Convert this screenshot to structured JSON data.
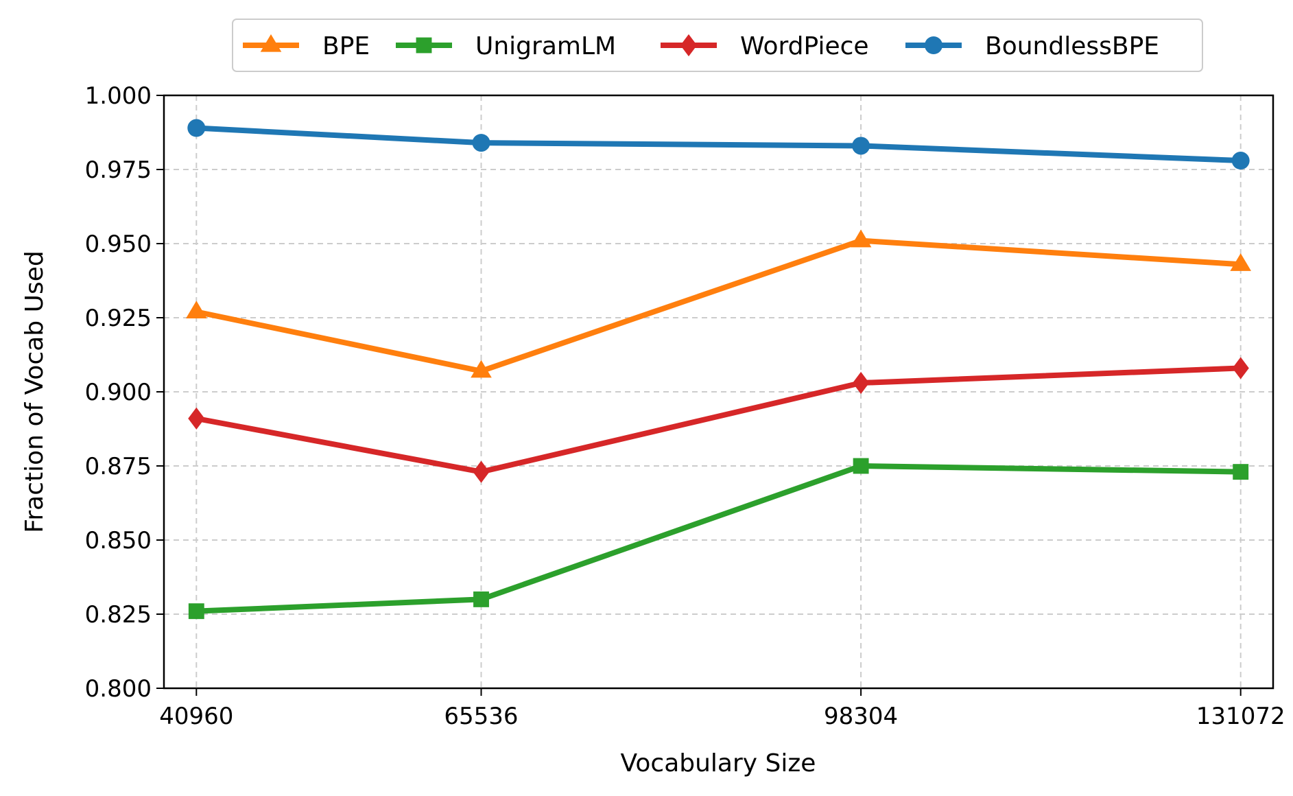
{
  "chart_data": {
    "type": "line",
    "title": "",
    "xlabel": "Vocabulary Size",
    "ylabel": "Fraction of Vocab Used",
    "x": [
      40960,
      65536,
      98304,
      131072
    ],
    "x_tick_labels": [
      "40960",
      "65536",
      "98304",
      "131072"
    ],
    "ylim": [
      0.8,
      1.0
    ],
    "y_ticks": [
      0.8,
      0.825,
      0.85,
      0.875,
      0.9,
      0.925,
      0.95,
      0.975,
      1.0
    ],
    "y_tick_labels": [
      "0.800",
      "0.825",
      "0.850",
      "0.875",
      "0.900",
      "0.925",
      "0.950",
      "0.975",
      "1.000"
    ],
    "grid": true,
    "legend_position": "top-center",
    "series": [
      {
        "name": "BPE",
        "color": "#ff7f0e",
        "marker": "triangle",
        "values": [
          0.927,
          0.907,
          0.951,
          0.943
        ]
      },
      {
        "name": "UnigramLM",
        "color": "#2ca02c",
        "marker": "square",
        "values": [
          0.826,
          0.83,
          0.875,
          0.873
        ]
      },
      {
        "name": "WordPiece",
        "color": "#d62728",
        "marker": "diamond",
        "values": [
          0.891,
          0.873,
          0.903,
          0.908
        ]
      },
      {
        "name": "BoundlessBPE",
        "color": "#1f77b4",
        "marker": "circle",
        "values": [
          0.989,
          0.984,
          0.983,
          0.978
        ]
      }
    ]
  }
}
